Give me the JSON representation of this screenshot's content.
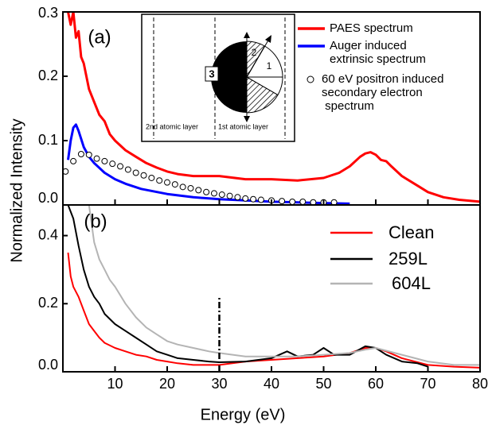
{
  "chart_data": [
    {
      "type": "line",
      "annotation": "(a)",
      "ylabel": "Normalized Intensity",
      "xlim": [
        0,
        80
      ],
      "ylim": [
        0,
        0.3
      ],
      "yticks": [
        {
          "value": 0,
          "label": "0.0"
        },
        0.1,
        0.2,
        0.3
      ],
      "series": [
        {
          "name": "PAES spectrum",
          "color": "#ff0000",
          "kind": "line",
          "x": [
            1,
            1.5,
            2,
            2.5,
            3,
            3.5,
            4,
            4.5,
            5,
            6,
            7,
            8,
            9,
            10,
            12,
            14,
            16,
            18,
            20,
            22,
            25,
            28,
            30,
            35,
            40,
            45,
            50,
            53,
            55,
            57,
            58,
            59,
            60,
            61,
            62,
            63,
            65,
            68,
            70,
            73,
            76,
            80
          ],
          "values": [
            0.3,
            0.28,
            0.3,
            0.26,
            0.27,
            0.23,
            0.22,
            0.2,
            0.18,
            0.16,
            0.14,
            0.13,
            0.11,
            0.1,
            0.085,
            0.075,
            0.065,
            0.058,
            0.052,
            0.048,
            0.045,
            0.045,
            0.045,
            0.04,
            0.04,
            0.038,
            0.042,
            0.05,
            0.06,
            0.075,
            0.08,
            0.082,
            0.078,
            0.07,
            0.068,
            0.06,
            0.045,
            0.03,
            0.02,
            0.012,
            0.008,
            0.005
          ]
        },
        {
          "name": "Auger induced\nextrinsic spectrum",
          "color": "#0000ff",
          "kind": "line",
          "x": [
            1,
            1.5,
            2,
            2.5,
            3,
            4,
            5,
            6,
            8,
            10,
            12,
            15,
            20,
            25,
            30,
            35,
            40,
            45,
            50,
            55
          ],
          "values": [
            0.07,
            0.1,
            0.12,
            0.125,
            0.115,
            0.09,
            0.075,
            0.065,
            0.05,
            0.04,
            0.033,
            0.025,
            0.017,
            0.012,
            0.009,
            0.007,
            0.005,
            0.004,
            0.003,
            0.002
          ]
        },
        {
          "name": "60 eV positron induced\nsecondary electron\n spectrum",
          "color": "#000000",
          "kind": "scatter",
          "x": [
            0.5,
            2,
            3.5,
            5,
            6.5,
            8,
            9.5,
            11,
            12.5,
            14,
            15.5,
            17,
            18.5,
            20,
            21.5,
            23,
            24.5,
            26,
            27.5,
            29,
            30.5,
            32,
            33.5,
            35,
            36.5,
            38,
            40,
            42,
            44,
            46,
            48,
            50,
            52
          ],
          "values": [
            0.052,
            0.068,
            0.079,
            0.078,
            0.072,
            0.068,
            0.064,
            0.06,
            0.055,
            0.05,
            0.046,
            0.042,
            0.038,
            0.035,
            0.032,
            0.028,
            0.026,
            0.023,
            0.02,
            0.018,
            0.016,
            0.014,
            0.012,
            0.01,
            0.009,
            0.008,
            0.007,
            0.006,
            0.005,
            0.005,
            0.004,
            0.004,
            0.004
          ]
        }
      ]
    },
    {
      "type": "line",
      "annotation": "(b)",
      "xlabel": "Energy (eV)",
      "xlim": [
        0,
        80
      ],
      "ylim": [
        0,
        0.49
      ],
      "xticks": [
        10,
        20,
        30,
        40,
        50,
        60,
        70,
        80
      ],
      "yticks": [
        {
          "value": 0,
          "label": "0.0"
        },
        0.2,
        0.4
      ],
      "vline": {
        "x": 30,
        "ymax": 0.22
      },
      "series": [
        {
          "name": "Clean",
          "color": "#ff0000",
          "kind": "line",
          "x": [
            1,
            1.5,
            2,
            3,
            4,
            5,
            6,
            7,
            8,
            10,
            12,
            14,
            16,
            18,
            20,
            22,
            25,
            30,
            35,
            40,
            45,
            50,
            55,
            58,
            60,
            62,
            65,
            70,
            75,
            80
          ],
          "values": [
            0.35,
            0.28,
            0.25,
            0.22,
            0.18,
            0.14,
            0.12,
            0.1,
            0.085,
            0.07,
            0.06,
            0.05,
            0.045,
            0.035,
            0.03,
            0.025,
            0.02,
            0.02,
            0.03,
            0.035,
            0.04,
            0.045,
            0.055,
            0.07,
            0.07,
            0.06,
            0.04,
            0.02,
            0.015,
            0.012
          ]
        },
        {
          "name": "259L",
          "color": "#000000",
          "kind": "line",
          "x": [
            1,
            2,
            3,
            4,
            5,
            6,
            7,
            8,
            10,
            12,
            14,
            16,
            18,
            20,
            22,
            25,
            28,
            30,
            35,
            40,
            43,
            45,
            48,
            50,
            52,
            55,
            58,
            60,
            62,
            65,
            68,
            70
          ],
          "values": [
            0.49,
            0.45,
            0.37,
            0.3,
            0.25,
            0.22,
            0.2,
            0.17,
            0.14,
            0.12,
            0.1,
            0.08,
            0.06,
            0.05,
            0.04,
            0.035,
            0.03,
            0.028,
            0.03,
            0.04,
            0.06,
            0.045,
            0.05,
            0.07,
            0.05,
            0.05,
            0.075,
            0.07,
            0.05,
            0.03,
            0.025,
            0.015
          ]
        },
        {
          "name": "604L",
          "color": "#b4b4b4",
          "kind": "line",
          "x": [
            5,
            6,
            7,
            8,
            9,
            10,
            12,
            14,
            16,
            18,
            20,
            22,
            25,
            28,
            30,
            35,
            40,
            45,
            50,
            55,
            58,
            60,
            65,
            70,
            75,
            80
          ],
          "values": [
            0.49,
            0.38,
            0.33,
            0.3,
            0.27,
            0.25,
            0.2,
            0.16,
            0.13,
            0.11,
            0.09,
            0.08,
            0.07,
            0.06,
            0.055,
            0.045,
            0.045,
            0.045,
            0.05,
            0.055,
            0.065,
            0.07,
            0.05,
            0.03,
            0.02,
            0.02
          ]
        }
      ]
    }
  ],
  "inset": {
    "labels": [
      "3",
      "2",
      "1"
    ],
    "layers": [
      "2nd atomic layer",
      "1st atomic layer"
    ]
  }
}
